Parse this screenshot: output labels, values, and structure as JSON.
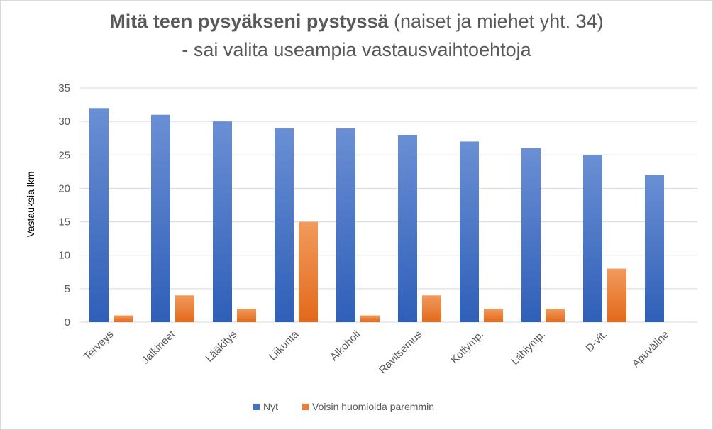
{
  "chart_data": {
    "type": "bar",
    "title_bold": "Mitä teen pysyäkseni pystyssä",
    "title_rest": " (naiset ja miehet yht. 34)",
    "subtitle": "- sai valita useampia vastausvaihtoehtoja",
    "xlabel": "",
    "ylabel": "Vastauksia lkm",
    "ylim": [
      0,
      35
    ],
    "yticks": [
      0,
      5,
      10,
      15,
      20,
      25,
      30,
      35
    ],
    "grid": true,
    "legend_position": "bottom",
    "categories": [
      "Terveys",
      "Jalkineet",
      "Lääkitys",
      "Liikunta",
      "Alkoholi",
      "Ravitsemus",
      "Kotiymp.",
      "Lähiymp.",
      "D-vit.",
      "Apuväline"
    ],
    "series": [
      {
        "name": "Nyt",
        "color": "#4472c4",
        "values": [
          32,
          31,
          30,
          29,
          29,
          28,
          27,
          26,
          25,
          22
        ]
      },
      {
        "name": "Voisin huomioida paremmin",
        "color": "#ed7d31",
        "values": [
          1,
          4,
          2,
          15,
          1,
          4,
          2,
          2,
          8,
          0
        ]
      }
    ]
  }
}
